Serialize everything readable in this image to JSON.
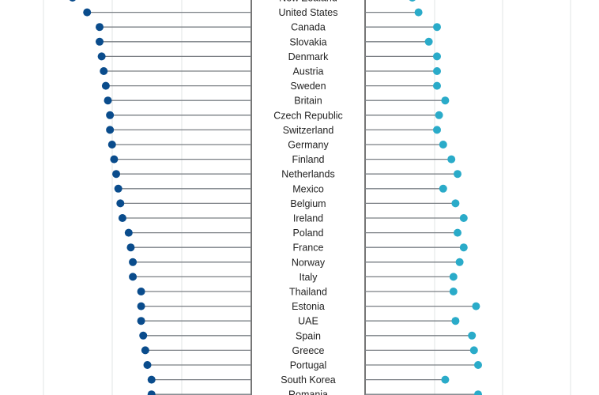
{
  "chart_data": {
    "type": "dumbbell-lollipop",
    "left_panel": {
      "series_color": "#0a4c8c",
      "baseline": "right",
      "xlim": [
        0,
        100
      ]
    },
    "right_panel": {
      "series_color": "#2aabc9",
      "baseline": "left",
      "xlim": [
        0,
        100
      ]
    },
    "rows": [
      {
        "country": "New Zealand",
        "left": 14,
        "right": 23
      },
      {
        "country": "United States",
        "left": 21,
        "right": 26
      },
      {
        "country": "Canada",
        "left": 27,
        "right": 35
      },
      {
        "country": "Slovakia",
        "left": 27,
        "right": 31
      },
      {
        "country": "Denmark",
        "left": 28,
        "right": 35
      },
      {
        "country": "Austria",
        "left": 29,
        "right": 35
      },
      {
        "country": "Sweden",
        "left": 30,
        "right": 35
      },
      {
        "country": "Britain",
        "left": 31,
        "right": 39
      },
      {
        "country": "Czech Republic",
        "left": 32,
        "right": 36
      },
      {
        "country": "Switzerland",
        "left": 32,
        "right": 35
      },
      {
        "country": "Germany",
        "left": 33,
        "right": 38
      },
      {
        "country": "Finland",
        "left": 34,
        "right": 42
      },
      {
        "country": "Netherlands",
        "left": 35,
        "right": 45
      },
      {
        "country": "Mexico",
        "left": 36,
        "right": 38
      },
      {
        "country": "Belgium",
        "left": 37,
        "right": 44
      },
      {
        "country": "Ireland",
        "left": 38,
        "right": 48
      },
      {
        "country": "Poland",
        "left": 41,
        "right": 45
      },
      {
        "country": "France",
        "left": 42,
        "right": 48
      },
      {
        "country": "Norway",
        "left": 43,
        "right": 46
      },
      {
        "country": "Italy",
        "left": 43,
        "right": 43
      },
      {
        "country": "Thailand",
        "left": 47,
        "right": 43
      },
      {
        "country": "Estonia",
        "left": 47,
        "right": 54
      },
      {
        "country": "UAE",
        "left": 47,
        "right": 44
      },
      {
        "country": "Spain",
        "left": 48,
        "right": 52
      },
      {
        "country": "Greece",
        "left": 49,
        "right": 53
      },
      {
        "country": "Portugal",
        "left": 50,
        "right": 55
      },
      {
        "country": "South Korea",
        "left": 52,
        "right": 39
      },
      {
        "country": "Romania",
        "left": 52,
        "right": 55
      }
    ]
  }
}
